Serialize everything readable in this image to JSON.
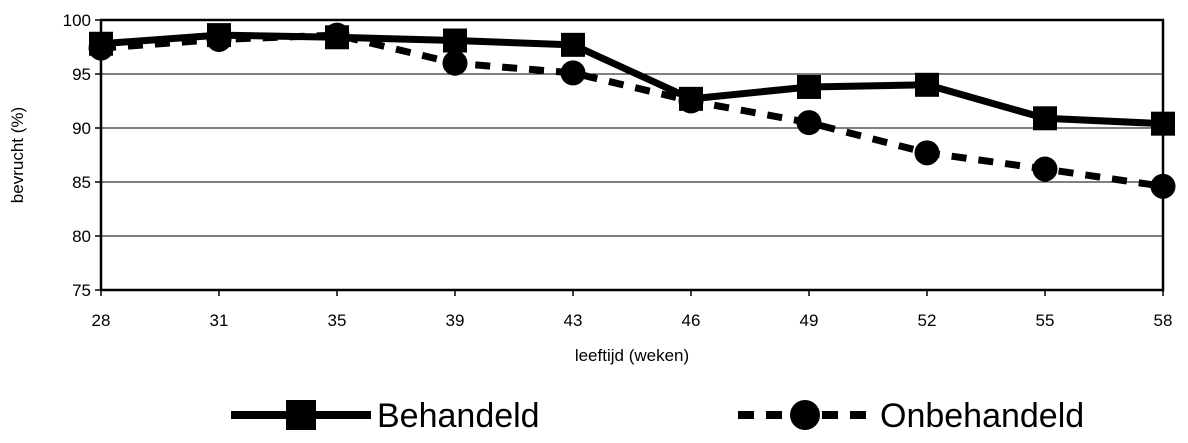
{
  "chart_data": {
    "type": "line",
    "title": "",
    "xlabel": "leeftijd (weken)",
    "ylabel": "bevrucht (%)",
    "categories": [
      "28",
      "31",
      "35",
      "39",
      "43",
      "46",
      "49",
      "52",
      "55",
      "58"
    ],
    "ylim": [
      75,
      100
    ],
    "yticks": [
      "75",
      "80",
      "85",
      "90",
      "95",
      "100"
    ],
    "grid": true,
    "legend_position": "bottom",
    "series": [
      {
        "name": "Behandeld",
        "values": [
          97.8,
          98.6,
          98.4,
          98.1,
          97.7,
          92.7,
          93.8,
          94.0,
          90.9,
          90.4
        ],
        "line_style": "solid",
        "marker": "square",
        "color": "#000000"
      },
      {
        "name": "Onbehandeld",
        "values": [
          97.4,
          98.2,
          98.6,
          96.0,
          95.1,
          92.5,
          90.5,
          87.7,
          86.2,
          84.6
        ],
        "line_style": "dashed",
        "marker": "circle",
        "color": "#000000"
      }
    ]
  }
}
